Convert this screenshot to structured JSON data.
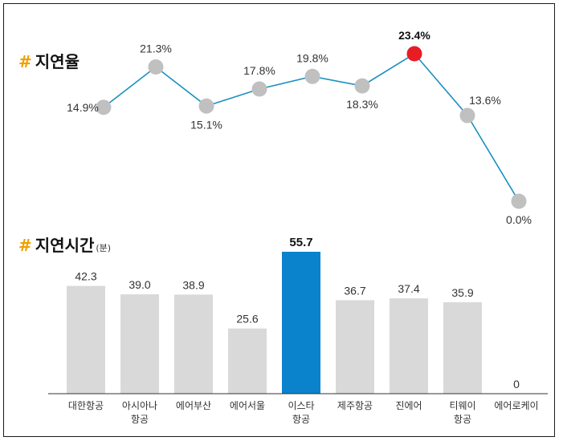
{
  "chart_data": [
    {
      "type": "line",
      "title_hash": "#",
      "title": "지연율",
      "x": [
        "대한항공",
        "아시아나 항공",
        "에어부산",
        "에어서울",
        "이스타 항공",
        "제주항공",
        "진에어",
        "티웨이 항공",
        "에어로케이"
      ],
      "values": [
        14.9,
        21.3,
        15.1,
        17.8,
        19.8,
        18.3,
        23.4,
        13.6,
        0.0
      ],
      "value_labels": [
        "14.9%",
        "21.3%",
        "15.1%",
        "17.8%",
        "19.8%",
        "18.3%",
        "23.4%",
        "13.6%",
        "0.0%"
      ],
      "label_positions": [
        "left",
        "above",
        "below",
        "above",
        "above",
        "below",
        "above-left",
        "above-right",
        "below"
      ],
      "highlight_index": 6,
      "colors": {
        "line": "#1a8fc0",
        "point": "#c0c0c0",
        "highlight": "#e81c24"
      }
    },
    {
      "type": "bar",
      "title_hash": "#",
      "title": "지연시간",
      "unit": "(분)",
      "categories": [
        [
          "대한항공"
        ],
        [
          "아시아나",
          "항공"
        ],
        [
          "에어부산"
        ],
        [
          "에어서울"
        ],
        [
          "이스타",
          "항공"
        ],
        [
          "제주항공"
        ],
        [
          "진에어"
        ],
        [
          "티웨이",
          "항공"
        ],
        [
          "에어로케이"
        ]
      ],
      "values": [
        42.3,
        39.0,
        38.9,
        25.6,
        55.7,
        36.7,
        37.4,
        35.9,
        0
      ],
      "value_labels": [
        "42.3",
        "39.0",
        "38.9",
        "25.6",
        "55.7",
        "36.7",
        "37.4",
        "35.9",
        "0"
      ],
      "highlight_index": 4,
      "colors": {
        "bar": "#d9d9d9",
        "highlight": "#0a82cc",
        "axis": "#333333"
      }
    }
  ]
}
